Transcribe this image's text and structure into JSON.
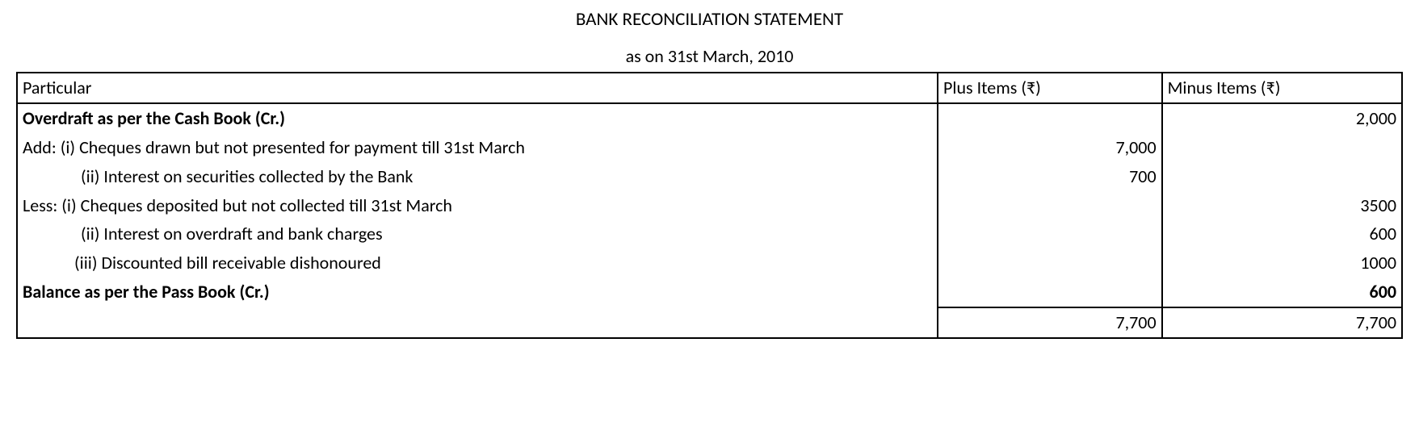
{
  "title": "BANK RECONCILIATION STATEMENT",
  "subtitle": "as on 31st March, 2010",
  "columns": {
    "particular": "Particular",
    "plus": "Plus Items (₹)",
    "minus": "Minus Items (₹)"
  },
  "rows": [
    {
      "label": "Overdraft as per the Cash Book (Cr.)",
      "bold": true,
      "indent": 0,
      "plus": "",
      "minus": "2,000"
    },
    {
      "label": "Add: (i) Cheques drawn but not presented for payment till 31st March",
      "bold": false,
      "indent": 0,
      "plus": "7,000",
      "minus": ""
    },
    {
      "label": "(ii) Interest on securities collected by the Bank",
      "bold": false,
      "indent": 1,
      "plus": "700",
      "minus": ""
    },
    {
      "label": "Less: (i) Cheques deposited but not collected till 31st March",
      "bold": false,
      "indent": 0,
      "plus": "",
      "minus": "3500"
    },
    {
      "label": "(ii) Interest on overdraft and bank charges",
      "bold": false,
      "indent": 1,
      "plus": "",
      "minus": "600"
    },
    {
      "label": "(iii) Discounted bill receivable dishonoured",
      "bold": false,
      "indent": 2,
      "plus": "",
      "minus": "1000"
    },
    {
      "label": "Balance as per the Pass Book (Cr.)",
      "bold": true,
      "indent": 0,
      "plus": "",
      "minus": "600",
      "minus_bold": true
    }
  ],
  "totals": {
    "plus": "7,700",
    "minus": "7,700"
  }
}
